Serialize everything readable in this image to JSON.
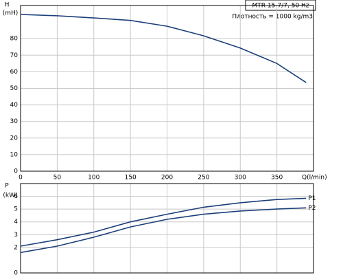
{
  "chart_data": [
    {
      "type": "line",
      "title": "MTR 15-7/7, 50 Hz",
      "subtitle": "Плотность = 1000 kg/m3",
      "y_label": "H",
      "y_unit": "(mH)",
      "x_label": "Q(l/min)",
      "x": [
        0,
        50,
        100,
        150,
        200,
        250,
        300,
        350,
        390
      ],
      "series": [
        {
          "color": "#1b3f7a",
          "values": [
            94.6,
            93.8,
            92.5,
            91,
            87.5,
            81.7,
            74.3,
            65,
            53.5
          ]
        }
      ],
      "xlim": [
        0,
        400
      ],
      "xticks": [
        0,
        50,
        100,
        150,
        200,
        250,
        300,
        350
      ],
      "ylim": [
        0,
        100
      ],
      "yticks": [
        0,
        10,
        20,
        30,
        40,
        50,
        60,
        70,
        80
      ],
      "grid": true
    },
    {
      "type": "line",
      "y_label": "P",
      "y_unit": "(kW)",
      "x": [
        0,
        50,
        100,
        150,
        200,
        250,
        300,
        350,
        390
      ],
      "series": [
        {
          "name": "P1",
          "color": "#1b3f7a",
          "values": [
            2.1,
            2.6,
            3.2,
            4.0,
            4.6,
            5.15,
            5.5,
            5.75,
            5.85
          ]
        },
        {
          "name": "P2",
          "color": "#1b3f7a",
          "values": [
            1.6,
            2.1,
            2.8,
            3.6,
            4.2,
            4.6,
            4.85,
            5.0,
            5.1
          ]
        }
      ],
      "xlim": [
        0,
        400
      ],
      "ylim": [
        0,
        7
      ],
      "yticks": [
        0,
        2,
        3,
        4,
        5,
        6
      ],
      "grid": true
    }
  ]
}
